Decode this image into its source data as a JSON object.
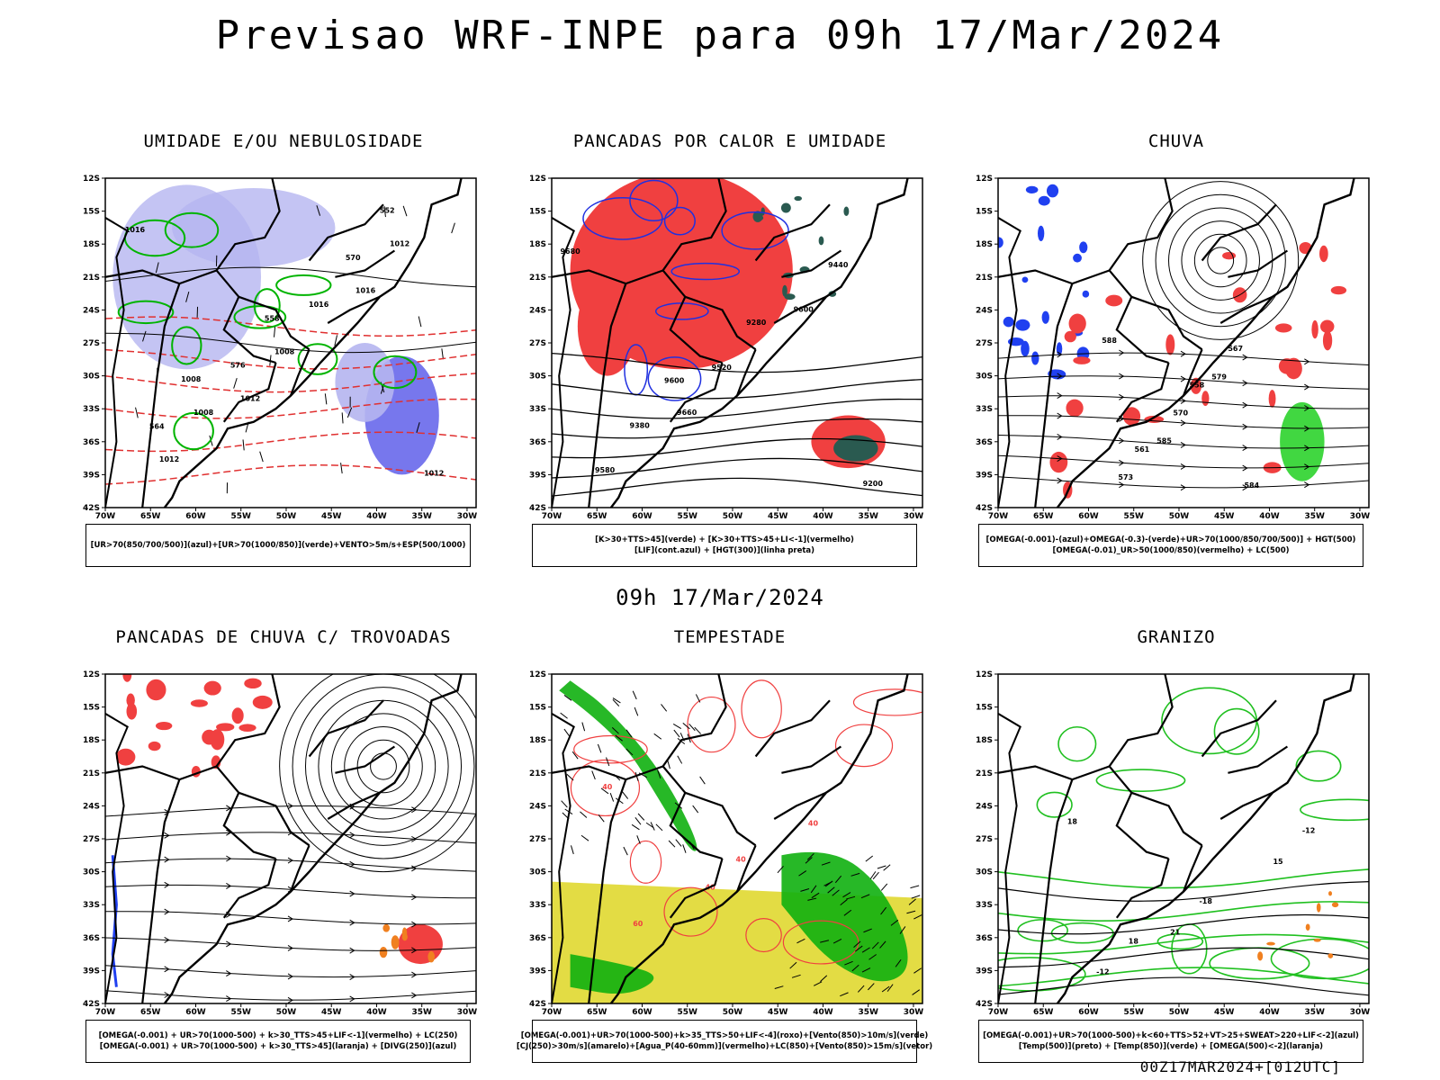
{
  "page": {
    "title": "Previsao WRF-INPE  para 09h 17/Mar/2024",
    "mid_date": "09h 17/Mar/2024",
    "run": "00Z17MAR2024+[012UTC]"
  },
  "axes": {
    "lat_labels": [
      "12S",
      "15S",
      "18S",
      "21S",
      "24S",
      "27S",
      "30S",
      "33S",
      "36S",
      "39S",
      "42S"
    ],
    "lon_labels": [
      "70W",
      "65W",
      "60W",
      "55W",
      "50W",
      "45W",
      "40W",
      "35W",
      "30W"
    ]
  },
  "panels": [
    {
      "id": "umidade",
      "title": "UMIDADE E/OU NEBULOSIDADE",
      "legend": [
        "[UR>70(850/700/500)](azul)+[UR>70(1000/850)](verde)+VENTO>5m/s+ESP(500/1000)"
      ],
      "contour_labels": [
        "1016",
        "1012",
        "1016",
        "1012",
        "1008",
        "1012",
        "1008",
        "1016",
        "1012",
        "576",
        "570",
        "564",
        "558",
        "552",
        "1008"
      ],
      "colors": {
        "fill": "#b5b5f0",
        "fill_dark": "#5555e8",
        "line": "#00b400",
        "accent": "#e03030"
      }
    },
    {
      "id": "pancadas_calor",
      "title": "PANCADAS POR CALOR E UMIDADE",
      "legend": [
        "[K>30+TTS>45](verde) + [K>30+TTS>45+LI<-1](vermelho)",
        "[LIF](cont.azul) + [HGT(300)](linha preta)"
      ],
      "contour_labels": [
        "9680",
        "9660",
        "9600",
        "9580",
        "9520",
        "9440",
        "9380",
        "9280",
        "9200",
        "9600"
      ],
      "colors": {
        "fill": "#f04040",
        "fill2": "#2a5a50",
        "line": "#2030e0"
      }
    },
    {
      "id": "chuva",
      "title": "CHUVA",
      "legend": [
        "[OMEGA(-0.001)-(azul)+OMEGA(-0.3)-(verde)+UR>70(1000/850/700/500)] + HGT(500)",
        "[OMEGA(-0.01)_UR>50(1000/850)(vermelho) + LC(500)"
      ],
      "contour_labels": [
        "588",
        "585",
        "579",
        "573",
        "570",
        "567",
        "561",
        "558",
        "584"
      ],
      "colors": {
        "fill": "#f04040",
        "fill2": "#2040f0",
        "fill3": "#20d020"
      }
    },
    {
      "id": "pancadas_trovoadas",
      "title": "PANCADAS DE CHUVA C/ TROVOADAS",
      "legend": [
        "[OMEGA(-0.001) + UR>70(1000-500) + k>30_TTS>45+LIF<-1](vermelho) + LC(250)",
        "[OMEGA(-0.001) + UR>70(1000-500) + k>30_TTS>45](laranja) + [DIVG(250)](azul)"
      ],
      "contour_labels": [],
      "colors": {
        "fill": "#f04040",
        "fill2": "#f08020",
        "fill3": "#2040f0"
      }
    },
    {
      "id": "tempestade",
      "title": "TEMPESTADE",
      "legend": [
        "[OMEGA(-0.001)+UR>70(1000-500)+k>35_TTS>50+LIF<-4](roxo)+[Vento(850)>10m/s](verde)",
        "[CJ(250)>30m/s](amarelo)+[Agua_P(40-60mm)](vermelho)+LC(850)+[Vento(850)>15m/s](vetor)"
      ],
      "contour_labels": [
        "40",
        "40",
        "40",
        "60",
        "40"
      ],
      "colors": {
        "fill": "#e0d830",
        "fill2": "#10b010",
        "line": "#f04040"
      }
    },
    {
      "id": "granizo",
      "title": "GRANIZO",
      "legend": [
        "[OMEGA(-0.001)+UR>70(1000-500)+k<60+TTS>52+VT>25+SWEAT>220+LIF<-2](azul)",
        "[Temp(500)](preto) + [Temp(850)](verde) + [OMEGA(500)<-2](laranja)"
      ],
      "contour_labels": [
        "18",
        "21",
        "15",
        "-12",
        "-18",
        "-12",
        "18"
      ],
      "colors": {
        "line": "#20c020",
        "accent": "#f08020"
      }
    }
  ]
}
